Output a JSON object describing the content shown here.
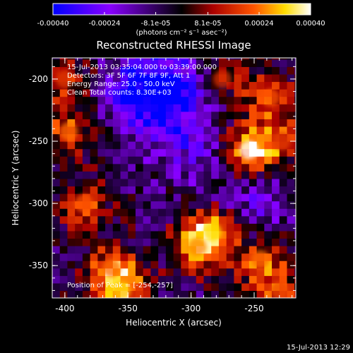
{
  "colorbar": {
    "ticks": [
      "-0.00040",
      "-0.00024",
      "-8.1e-05",
      "8.1e-05",
      "0.00024",
      "0.00040"
    ],
    "tick_values": [
      -0.0004,
      -0.00024,
      -8.1e-05,
      8.1e-05,
      0.00024,
      0.0004
    ],
    "range": [
      -0.0004,
      0.0004
    ],
    "units": "(photons cm⁻² s⁻¹ asec⁻²)",
    "colors": [
      "#0000ff",
      "#8800ff",
      "#000000",
      "#aa0000",
      "#ff5500",
      "#ffdd00",
      "#ffffff"
    ]
  },
  "footer_timestamp": "15-Jul-2013 12:29",
  "chart_data": {
    "type": "heatmap",
    "title": "Reconstructed RHESSI Image",
    "xlabel": "Heliocentric X (arcsec)",
    "ylabel": "Heliocentric Y (arcsec)",
    "xlim": [
      -410,
      -217
    ],
    "ylim": [
      -376,
      -183
    ],
    "xticks": [
      -400,
      -350,
      -300,
      -250
    ],
    "yticks": [
      -200,
      -250,
      -300,
      -350
    ],
    "annotations": [
      "15-Jul-2013 03:35:04.000 to 03:39:00.000",
      "Detectors: 3F 5F 6F 7F 8F 9F, Att 1",
      "Energy Range: 25.0 - 50.0 keV",
      "Clean     Total counts: 8.30E+03"
    ],
    "peak_label": "Position of Peak = [-254,-257]",
    "peak": [
      -254,
      -257
    ],
    "sources": [
      {
        "x": -254,
        "y": -257,
        "value": 0.0004
      },
      {
        "x": -283,
        "y": -323,
        "value": 0.00032
      },
      {
        "x": -295,
        "y": -335,
        "value": 0.00026
      },
      {
        "x": -397,
        "y": -242,
        "value": 0.00024
      },
      {
        "x": -385,
        "y": -300,
        "value": 0.00022
      },
      {
        "x": -363,
        "y": -352,
        "value": 0.00024
      },
      {
        "x": -355,
        "y": -370,
        "value": 0.0003
      },
      {
        "x": -245,
        "y": -345,
        "value": 0.00024
      },
      {
        "x": -230,
        "y": -370,
        "value": 0.0002
      },
      {
        "x": -237,
        "y": -215,
        "value": 0.00022
      },
      {
        "x": -228,
        "y": -250,
        "value": 0.00018
      },
      {
        "x": -275,
        "y": -200,
        "value": 0.00016
      },
      {
        "x": -400,
        "y": -200,
        "value": 0.00018
      }
    ],
    "negative_regions": [
      {
        "x": -320,
        "y": -205,
        "value": -0.0003
      },
      {
        "x": -340,
        "y": -215,
        "value": -0.0002
      },
      {
        "x": -300,
        "y": -250,
        "value": -0.00016
      },
      {
        "x": -250,
        "y": -300,
        "value": -0.00014
      }
    ]
  }
}
